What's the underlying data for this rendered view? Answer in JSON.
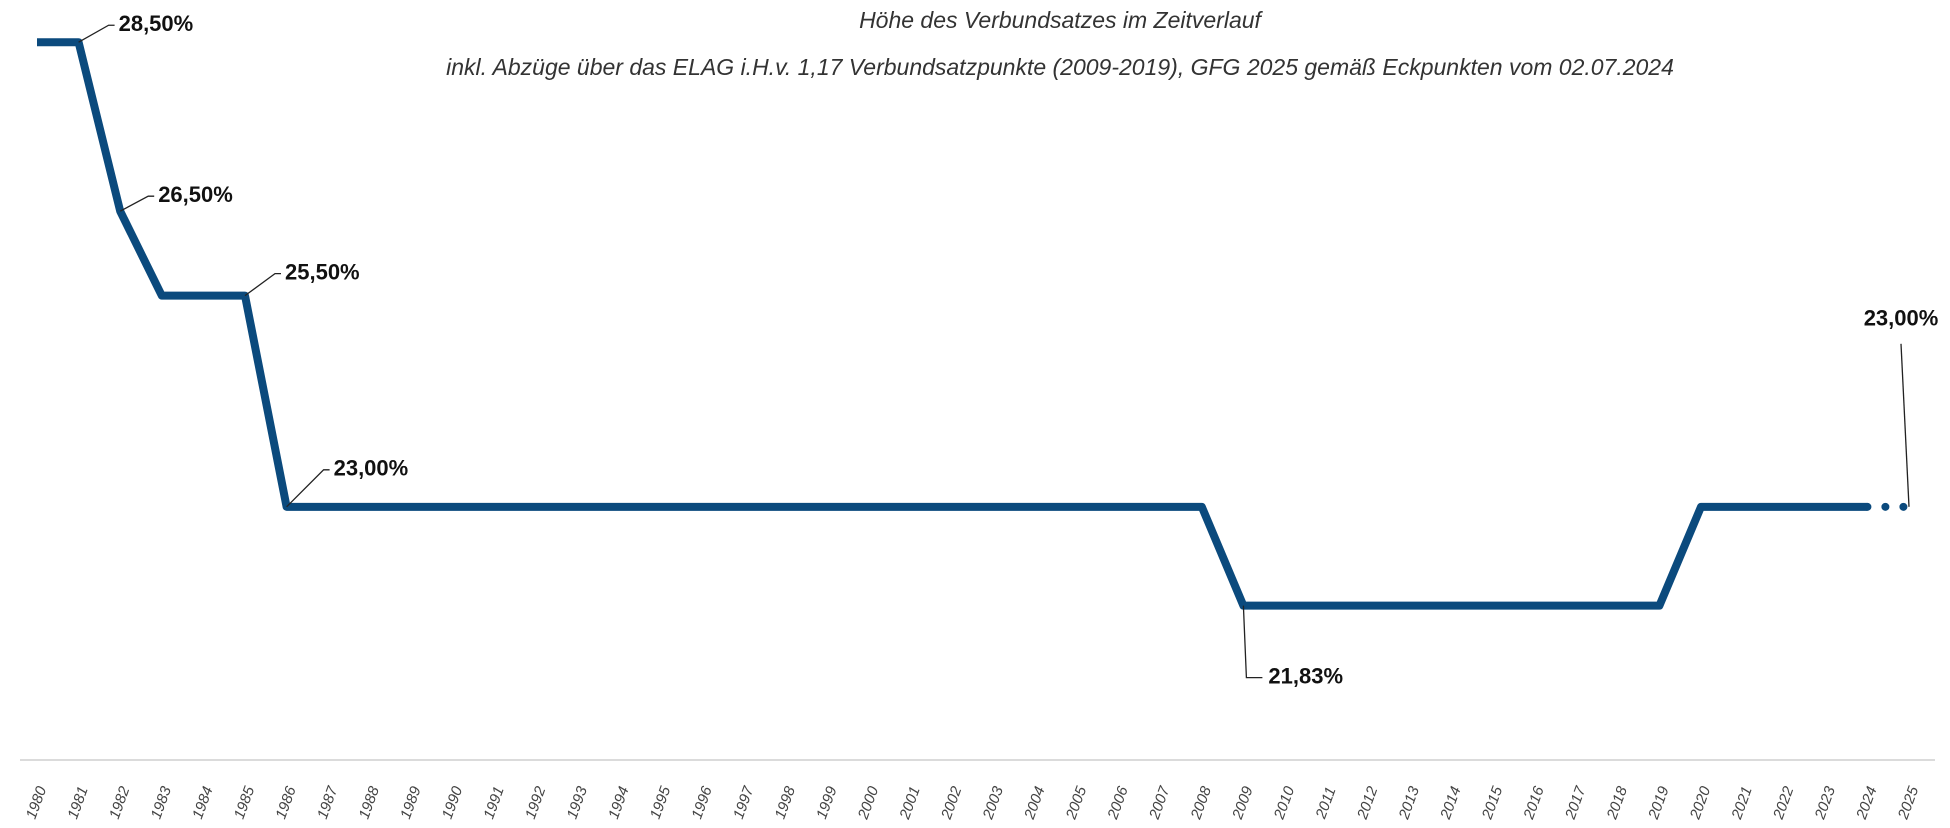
{
  "chart_data": {
    "type": "line",
    "title": "Höhe des Verbundsatzes im Zeitverlauf",
    "subtitle": "inkl. Abzüge über das ELAG i.H.v. 1,17 Verbundsatzpunkte (2009-2019), GFG 2025 gemäß Eckpunkten vom 02.07.2024",
    "categories": [
      "1980",
      "1981",
      "1982",
      "1983",
      "1984",
      "1985",
      "1986",
      "1987",
      "1988",
      "1989",
      "1990",
      "1991",
      "1992",
      "1993",
      "1994",
      "1995",
      "1996",
      "1997",
      "1998",
      "1999",
      "2000",
      "2001",
      "2002",
      "2003",
      "2004",
      "2005",
      "2006",
      "2007",
      "2008",
      "2009",
      "2010",
      "2011",
      "2012",
      "2013",
      "2014",
      "2015",
      "2016",
      "2017",
      "2018",
      "2019",
      "2020",
      "2021",
      "2022",
      "2023",
      "2024",
      "2025"
    ],
    "series": [
      {
        "name": "Verbundsatz",
        "color": "#0b4a7d",
        "values": [
          28.5,
          28.5,
          26.5,
          25.5,
          25.5,
          25.5,
          23,
          23,
          23,
          23,
          23,
          23,
          23,
          23,
          23,
          23,
          23,
          23,
          23,
          23,
          23,
          23,
          23,
          23,
          23,
          23,
          23,
          23,
          23,
          21.83,
          21.83,
          21.83,
          21.83,
          21.83,
          21.83,
          21.83,
          21.83,
          21.83,
          21.83,
          21.83,
          23,
          23,
          23,
          23,
          23,
          23
        ],
        "value_labels": [
          null,
          "28,50%",
          "26,50%",
          null,
          null,
          "25,50%",
          "23,00%",
          null,
          null,
          null,
          null,
          null,
          null,
          null,
          null,
          null,
          null,
          null,
          null,
          null,
          null,
          null,
          null,
          null,
          null,
          null,
          null,
          null,
          null,
          "21,83%",
          null,
          null,
          null,
          null,
          null,
          null,
          null,
          null,
          null,
          null,
          null,
          null,
          null,
          null,
          null,
          "23,00%"
        ],
        "dotted_last_segment": true
      }
    ],
    "ylim": [
      20.5,
      29
    ],
    "grid": false
  }
}
